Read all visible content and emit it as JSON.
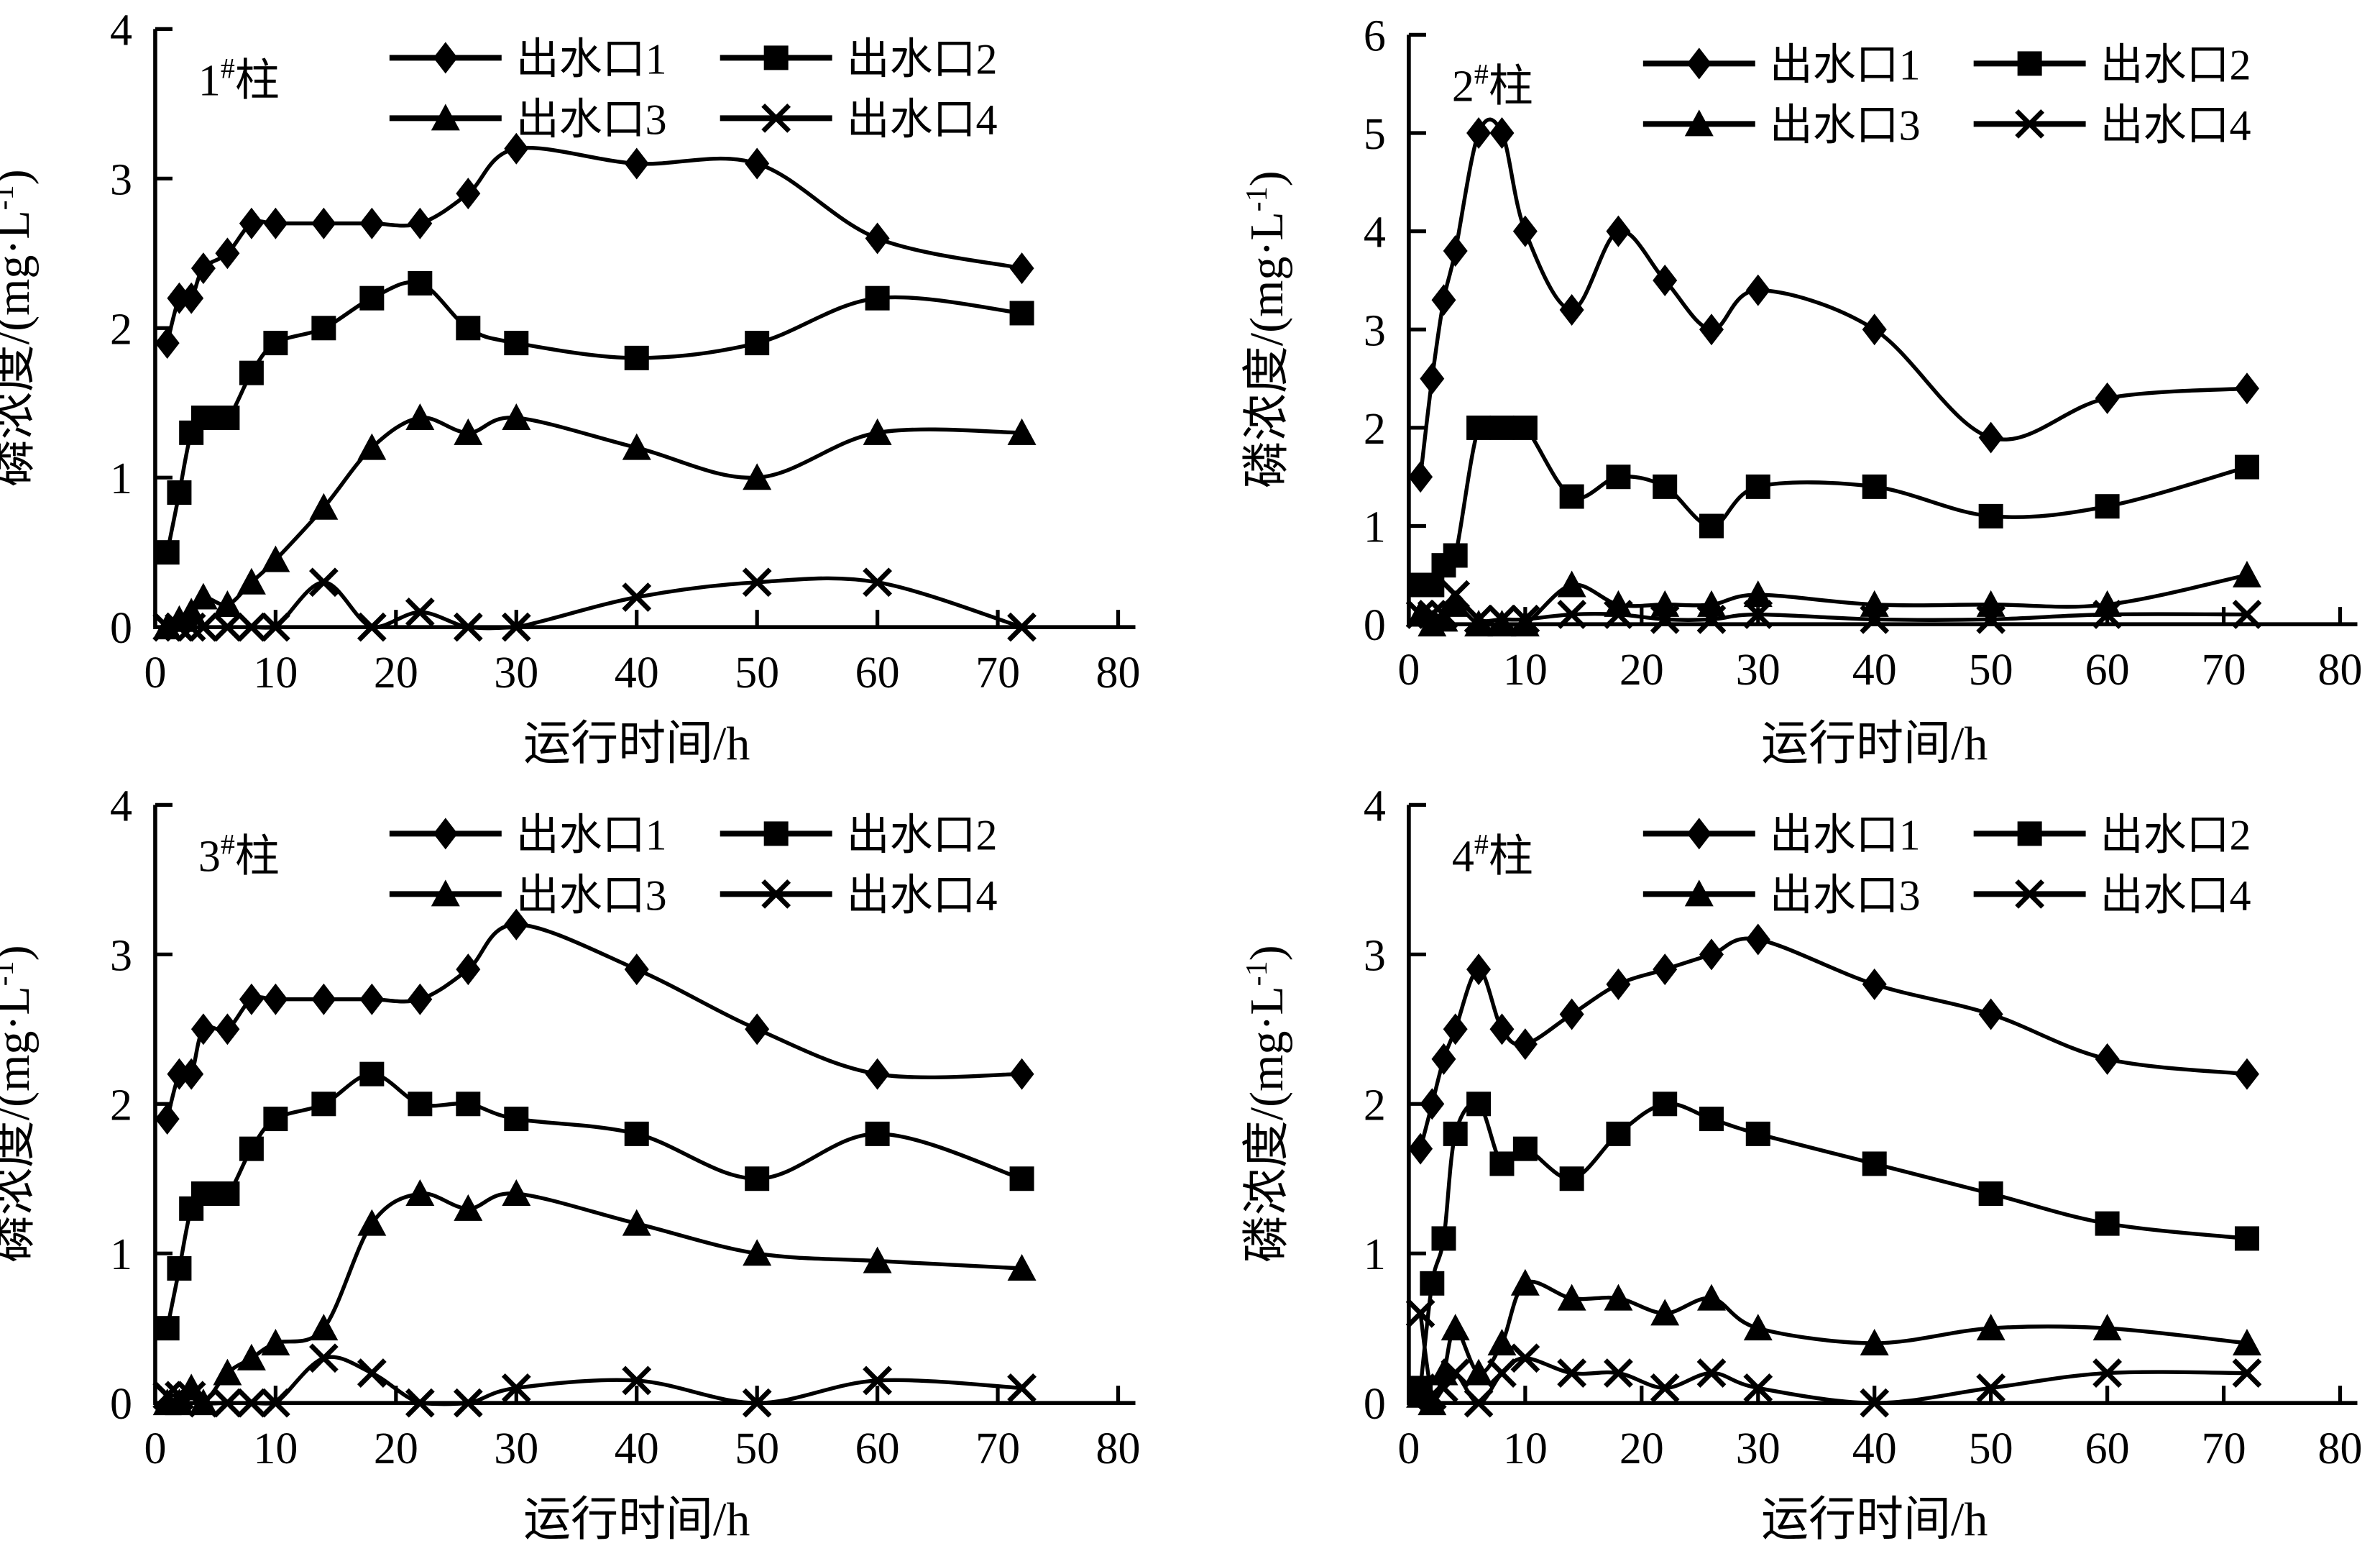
{
  "figure": {
    "background": "#ffffff",
    "ink": "#000000",
    "description_labels": {
      "x_axis": "运行时间/h",
      "y_axis": "磷浓度/(mg·L⁻¹)"
    }
  },
  "chart_data": [
    {
      "type": "line",
      "title": "1#柱",
      "title_parts": {
        "num": "1",
        "sup": "#",
        "post": "柱"
      },
      "xlabel": "运行时间/h",
      "ylabel": "磷浓度/(mg·L⁻¹)",
      "ylabel_parts": {
        "pre": "磷浓度/(mg·L",
        "sup": "-1",
        "post": ")"
      },
      "xlim": [
        0,
        80
      ],
      "ylim": [
        0,
        4
      ],
      "xticks": [
        0,
        10,
        20,
        30,
        40,
        50,
        60,
        70,
        80
      ],
      "yticks": [
        0,
        1,
        2,
        3,
        4
      ],
      "grid": false,
      "legend_position": "top-inside",
      "x": [
        1,
        2,
        3,
        4,
        6,
        8,
        10,
        14,
        18,
        22,
        26,
        30,
        40,
        50,
        60,
        72
      ],
      "series": [
        {
          "name": "出水口1",
          "marker": "diamond",
          "values": [
            1.9,
            2.2,
            2.2,
            2.4,
            2.5,
            2.7,
            2.7,
            2.7,
            2.7,
            2.7,
            2.9,
            3.2,
            3.1,
            3.1,
            2.6,
            2.4
          ]
        },
        {
          "name": "出水口2",
          "marker": "square",
          "values": [
            0.5,
            0.9,
            1.3,
            1.4,
            1.4,
            1.7,
            1.9,
            2.0,
            2.2,
            2.3,
            2.0,
            1.9,
            1.8,
            1.9,
            2.2,
            2.1
          ]
        },
        {
          "name": "出水口3",
          "marker": "triangle",
          "values": [
            0,
            0.05,
            0.1,
            0.2,
            0.15,
            0.3,
            0.45,
            0.8,
            1.2,
            1.4,
            1.3,
            1.4,
            1.2,
            1.0,
            1.3,
            1.3
          ]
        },
        {
          "name": "出水口4",
          "marker": "x",
          "values": [
            0,
            0,
            0,
            0,
            0,
            0,
            0,
            0.3,
            0,
            0.1,
            0,
            0,
            0.2,
            0.3,
            0.3,
            0
          ]
        }
      ]
    },
    {
      "type": "line",
      "title": "2#柱",
      "title_parts": {
        "num": "2",
        "sup": "#",
        "post": "柱"
      },
      "xlabel": "运行时间/h",
      "ylabel": "磷浓度/(mg·L⁻¹)",
      "ylabel_parts": {
        "pre": "磷浓度/(mg·L",
        "sup": "-1",
        "post": ")"
      },
      "xlim": [
        0,
        80
      ],
      "ylim": [
        0,
        6
      ],
      "xticks": [
        0,
        10,
        20,
        30,
        40,
        50,
        60,
        70,
        80
      ],
      "yticks": [
        0,
        1,
        2,
        3,
        4,
        5,
        6
      ],
      "grid": false,
      "legend_position": "top-inside",
      "x": [
        1,
        2,
        3,
        4,
        6,
        8,
        10,
        14,
        18,
        22,
        26,
        30,
        40,
        50,
        60,
        72
      ],
      "series": [
        {
          "name": "出水口1",
          "marker": "diamond",
          "values": [
            1.5,
            2.5,
            3.3,
            3.8,
            5.0,
            5.0,
            4.0,
            3.2,
            4.0,
            3.5,
            3.0,
            3.4,
            3.0,
            1.9,
            2.3,
            2.4
          ]
        },
        {
          "name": "出水口2",
          "marker": "square",
          "values": [
            0.4,
            0.4,
            0.6,
            0.7,
            2.0,
            2.0,
            2.0,
            1.3,
            1.5,
            1.4,
            1.0,
            1.4,
            1.4,
            1.1,
            1.2,
            1.6
          ]
        },
        {
          "name": "出水口3",
          "marker": "triangle",
          "values": [
            0.1,
            0,
            0.05,
            0.2,
            0,
            0,
            0,
            0.4,
            0.2,
            0.2,
            0.2,
            0.3,
            0.2,
            0.2,
            0.2,
            0.5
          ]
        },
        {
          "name": "出水口4",
          "marker": "x",
          "values": [
            0.1,
            0.1,
            0.1,
            0.3,
            0.05,
            0.05,
            0.05,
            0.1,
            0.1,
            0.05,
            0.05,
            0.1,
            0.05,
            0.05,
            0.1,
            0.1
          ]
        }
      ]
    },
    {
      "type": "line",
      "title": "3#柱",
      "title_parts": {
        "num": "3",
        "sup": "#",
        "post": "柱"
      },
      "xlabel": "运行时间/h",
      "ylabel": "磷浓度/(mg·L⁻¹)",
      "ylabel_parts": {
        "pre": "磷浓度/(mg·L",
        "sup": "-1",
        "post": ")"
      },
      "xlim": [
        0,
        80
      ],
      "ylim": [
        0,
        4
      ],
      "xticks": [
        0,
        10,
        20,
        30,
        40,
        50,
        60,
        70,
        80
      ],
      "yticks": [
        0,
        1,
        2,
        3,
        4
      ],
      "grid": false,
      "legend_position": "top-inside",
      "x": [
        1,
        2,
        3,
        4,
        6,
        8,
        10,
        14,
        18,
        22,
        26,
        30,
        40,
        50,
        60,
        72
      ],
      "series": [
        {
          "name": "出水口1",
          "marker": "diamond",
          "values": [
            1.9,
            2.2,
            2.2,
            2.5,
            2.5,
            2.7,
            2.7,
            2.7,
            2.7,
            2.7,
            2.9,
            3.2,
            2.9,
            2.5,
            2.2,
            2.2
          ]
        },
        {
          "name": "出水口2",
          "marker": "square",
          "values": [
            0.5,
            0.9,
            1.3,
            1.4,
            1.4,
            1.7,
            1.9,
            2.0,
            2.2,
            2.0,
            2.0,
            1.9,
            1.8,
            1.5,
            1.8,
            1.5
          ]
        },
        {
          "name": "出水口3",
          "marker": "triangle",
          "values": [
            0,
            0,
            0.1,
            0,
            0.2,
            0.3,
            0.4,
            0.5,
            1.2,
            1.4,
            1.3,
            1.4,
            1.2,
            1.0,
            0.95,
            0.9
          ]
        },
        {
          "name": "出水口4",
          "marker": "x",
          "values": [
            0.05,
            0.05,
            0.05,
            0,
            0,
            0,
            0,
            0.3,
            0.2,
            0,
            0,
            0.1,
            0.15,
            0,
            0.15,
            0.1
          ]
        }
      ]
    },
    {
      "type": "line",
      "title": "4#柱",
      "title_parts": {
        "num": "4",
        "sup": "#",
        "post": "柱"
      },
      "xlabel": "运行时间/h",
      "ylabel": "磷浓度/(mg·L⁻¹)",
      "ylabel_parts": {
        "pre": "磷浓度/(mg·L",
        "sup": "-1",
        "post": ")"
      },
      "xlim": [
        0,
        80
      ],
      "ylim": [
        0,
        4
      ],
      "xticks": [
        0,
        10,
        20,
        30,
        40,
        50,
        60,
        70,
        80
      ],
      "yticks": [
        0,
        1,
        2,
        3,
        4
      ],
      "grid": false,
      "legend_position": "top-inside",
      "x": [
        1,
        2,
        3,
        4,
        6,
        8,
        10,
        14,
        18,
        22,
        26,
        30,
        40,
        50,
        60,
        72
      ],
      "series": [
        {
          "name": "出水口1",
          "marker": "diamond",
          "values": [
            1.7,
            2.0,
            2.3,
            2.5,
            2.9,
            2.5,
            2.4,
            2.6,
            2.8,
            2.9,
            3.0,
            3.1,
            2.8,
            2.6,
            2.3,
            2.2
          ]
        },
        {
          "name": "出水口2",
          "marker": "square",
          "values": [
            0.1,
            0.8,
            1.1,
            1.8,
            2.0,
            1.6,
            1.7,
            1.5,
            1.8,
            2.0,
            1.9,
            1.8,
            1.6,
            1.4,
            1.2,
            1.1
          ]
        },
        {
          "name": "出水口3",
          "marker": "triangle",
          "values": [
            0.05,
            0,
            0.2,
            0.5,
            0.2,
            0.4,
            0.8,
            0.7,
            0.7,
            0.6,
            0.7,
            0.5,
            0.4,
            0.5,
            0.5,
            0.4
          ]
        },
        {
          "name": "出水口4",
          "marker": "x",
          "values": [
            0.6,
            0.05,
            0.1,
            0.2,
            0,
            0.2,
            0.3,
            0.2,
            0.2,
            0.1,
            0.2,
            0.1,
            0,
            0.1,
            0.2,
            0.2
          ]
        }
      ]
    }
  ]
}
